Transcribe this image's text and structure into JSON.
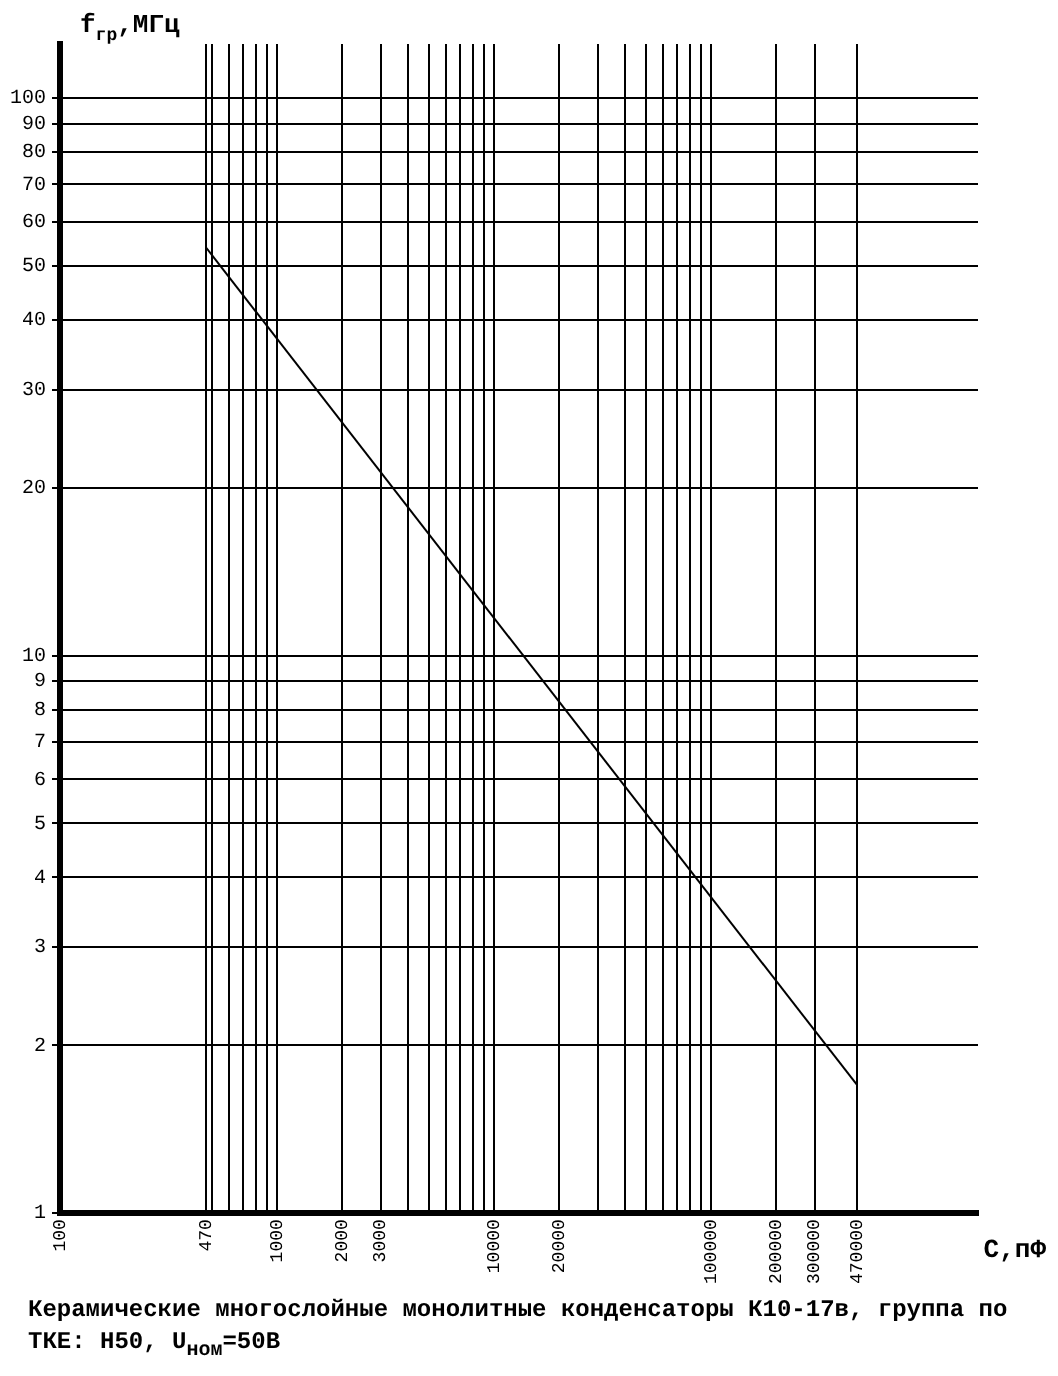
{
  "chart_data": {
    "type": "line",
    "xlabel": "C,пФ",
    "ylabel": "f$_{гр}$,МГц",
    "annotations": [
      "Керамические многослойные монолитные конденсаторы К10-17в, группа по ТКЕ: Н50, U$_{ном}$=50В"
    ],
    "series": [
      {
        "x": [
          470,
          470000
        ],
        "values": [
          54,
          1.7
        ],
        "color": "#000000"
      }
    ],
    "log": "xy",
    "xlim": [
      100,
      1700000
    ],
    "xticks": [
      100,
      470,
      {
        "value": 500,
        "label": null
      },
      {
        "value": 600,
        "label": null
      },
      {
        "value": 700,
        "label": null
      },
      {
        "value": 800,
        "label": null
      },
      {
        "value": 900,
        "label": null
      },
      1000,
      2000,
      3000,
      {
        "value": 4000,
        "label": null
      },
      {
        "value": 5000,
        "label": null
      },
      {
        "value": 6000,
        "label": null
      },
      {
        "value": 7000,
        "label": null
      },
      {
        "value": 8000,
        "label": null
      },
      {
        "value": 9000,
        "label": null
      },
      10000,
      20000,
      {
        "value": 30000,
        "label": null
      },
      {
        "value": 40000,
        "label": null
      },
      {
        "value": 50000,
        "label": null
      },
      {
        "value": 60000,
        "label": null
      },
      {
        "value": 70000,
        "label": null
      },
      {
        "value": 80000,
        "label": null
      },
      {
        "value": 90000,
        "label": null
      },
      100000,
      200000,
      300000,
      470000
    ],
    "ylim": [
      1,
      125
    ],
    "yticks": [
      1,
      2,
      3,
      4,
      5,
      6,
      7,
      8,
      9,
      10,
      20,
      30,
      40,
      50,
      60,
      70,
      80,
      90,
      100
    ],
    "grid": true,
    "marker": "none",
    "line_style": "solid",
    "legend": false
  }
}
